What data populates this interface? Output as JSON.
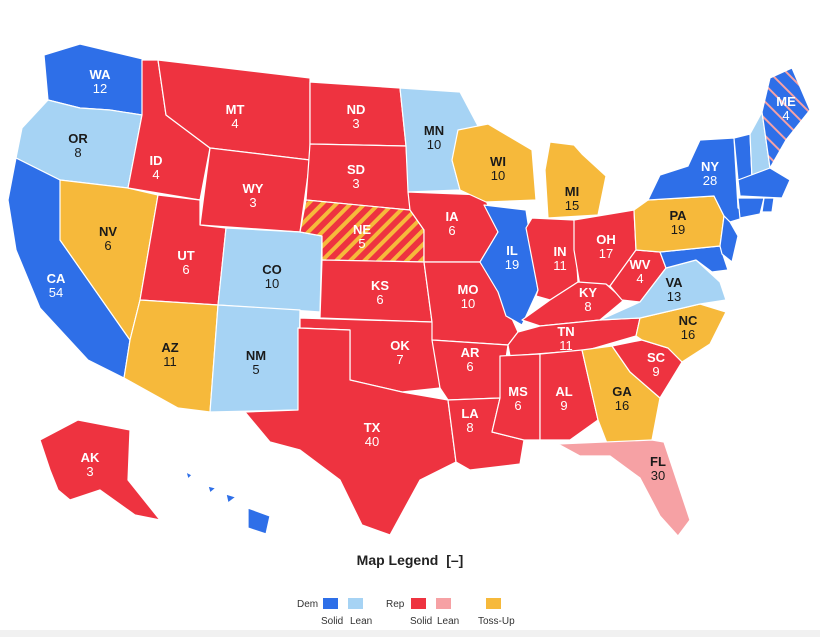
{
  "colors": {
    "solid_dem": "#2e6fe8",
    "lean_dem": "#a6d3f4",
    "solid_rep": "#ee3340",
    "lean_rep": "#f6a1a4",
    "toss_up": "#f6b93b"
  },
  "states": [
    {
      "abbr": "WA",
      "votes": "12",
      "rating": "solid_dem"
    },
    {
      "abbr": "OR",
      "votes": "8",
      "rating": "lean_dem"
    },
    {
      "abbr": "CA",
      "votes": "54",
      "rating": "solid_dem"
    },
    {
      "abbr": "NV",
      "votes": "6",
      "rating": "toss_up"
    },
    {
      "abbr": "ID",
      "votes": "4",
      "rating": "solid_rep"
    },
    {
      "abbr": "MT",
      "votes": "4",
      "rating": "solid_rep"
    },
    {
      "abbr": "WY",
      "votes": "3",
      "rating": "solid_rep"
    },
    {
      "abbr": "UT",
      "votes": "6",
      "rating": "solid_rep"
    },
    {
      "abbr": "AZ",
      "votes": "11",
      "rating": "toss_up"
    },
    {
      "abbr": "CO",
      "votes": "10",
      "rating": "lean_dem"
    },
    {
      "abbr": "NM",
      "votes": "5",
      "rating": "lean_dem"
    },
    {
      "abbr": "ND",
      "votes": "3",
      "rating": "solid_rep"
    },
    {
      "abbr": "SD",
      "votes": "3",
      "rating": "solid_rep"
    },
    {
      "abbr": "NE",
      "votes": "5",
      "rating": "solid_rep"
    },
    {
      "abbr": "KS",
      "votes": "6",
      "rating": "solid_rep"
    },
    {
      "abbr": "OK",
      "votes": "7",
      "rating": "solid_rep"
    },
    {
      "abbr": "TX",
      "votes": "40",
      "rating": "solid_rep"
    },
    {
      "abbr": "MN",
      "votes": "10",
      "rating": "lean_dem"
    },
    {
      "abbr": "IA",
      "votes": "6",
      "rating": "solid_rep"
    },
    {
      "abbr": "MO",
      "votes": "10",
      "rating": "solid_rep"
    },
    {
      "abbr": "AR",
      "votes": "6",
      "rating": "solid_rep"
    },
    {
      "abbr": "LA",
      "votes": "8",
      "rating": "solid_rep"
    },
    {
      "abbr": "WI",
      "votes": "10",
      "rating": "toss_up"
    },
    {
      "abbr": "IL",
      "votes": "19",
      "rating": "solid_dem"
    },
    {
      "abbr": "MI",
      "votes": "15",
      "rating": "toss_up"
    },
    {
      "abbr": "IN",
      "votes": "11",
      "rating": "solid_rep"
    },
    {
      "abbr": "OH",
      "votes": "17",
      "rating": "solid_rep"
    },
    {
      "abbr": "KY",
      "votes": "8",
      "rating": "solid_rep"
    },
    {
      "abbr": "TN",
      "votes": "11",
      "rating": "solid_rep"
    },
    {
      "abbr": "MS",
      "votes": "6",
      "rating": "solid_rep"
    },
    {
      "abbr": "AL",
      "votes": "9",
      "rating": "solid_rep"
    },
    {
      "abbr": "GA",
      "votes": "16",
      "rating": "toss_up"
    },
    {
      "abbr": "FL",
      "votes": "30",
      "rating": "lean_rep"
    },
    {
      "abbr": "SC",
      "votes": "9",
      "rating": "solid_rep"
    },
    {
      "abbr": "NC",
      "votes": "16",
      "rating": "toss_up"
    },
    {
      "abbr": "VA",
      "votes": "13",
      "rating": "lean_dem"
    },
    {
      "abbr": "WV",
      "votes": "4",
      "rating": "solid_rep"
    },
    {
      "abbr": "PA",
      "votes": "19",
      "rating": "toss_up"
    },
    {
      "abbr": "NY",
      "votes": "28",
      "rating": "solid_dem"
    },
    {
      "abbr": "ME",
      "votes": "4",
      "rating": "solid_dem"
    },
    {
      "abbr": "AK",
      "votes": "3",
      "rating": "solid_rep"
    }
  ],
  "legend": {
    "title": "Map Legend",
    "toggle": "[–]",
    "dem_label": "Dem",
    "rep_label": "Rep",
    "solid_label": "Solid",
    "lean_label": "Lean",
    "tossup_label": "Toss-Up"
  }
}
